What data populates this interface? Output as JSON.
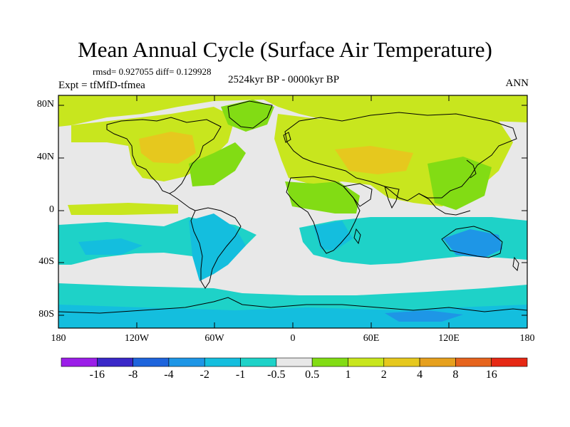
{
  "title": "Mean Annual Cycle (Surface Air Temperature)",
  "stats": "rmsd= 0.927055 diff= 0.129928",
  "experiment": "Expt = tfMfD-tfmea",
  "period": "2524kyr BP - 0000kyr BP",
  "season": "ANN",
  "lat_labels": [
    "80N",
    "40N",
    "0",
    "40S",
    "80S"
  ],
  "lon_labels": [
    "180",
    "120W",
    "60W",
    "0",
    "60E",
    "120E",
    "180"
  ],
  "colorbar": {
    "labels": [
      "-16",
      "-8",
      "-4",
      "-2",
      "-1",
      "-0.5",
      "0.5",
      "1",
      "2",
      "4",
      "8",
      "16"
    ],
    "colors": [
      "#9b1ee8",
      "#3a28c8",
      "#1e64dc",
      "#1e96e6",
      "#14bede",
      "#1ed2c8",
      "#e8e8e8",
      "#82dc14",
      "#c8e61e",
      "#e6c81e",
      "#e6a01e",
      "#e6641e",
      "#e62814"
    ]
  }
}
